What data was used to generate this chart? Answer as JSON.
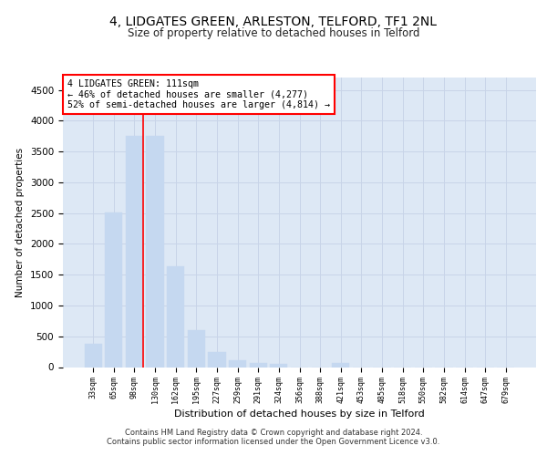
{
  "title_line1": "4, LIDGATES GREEN, ARLESTON, TELFORD, TF1 2NL",
  "title_line2": "Size of property relative to detached houses in Telford",
  "xlabel": "Distribution of detached houses by size in Telford",
  "ylabel": "Number of detached properties",
  "categories": [
    "33sqm",
    "65sqm",
    "98sqm",
    "130sqm",
    "162sqm",
    "195sqm",
    "227sqm",
    "259sqm",
    "291sqm",
    "324sqm",
    "356sqm",
    "388sqm",
    "421sqm",
    "453sqm",
    "485sqm",
    "518sqm",
    "550sqm",
    "582sqm",
    "614sqm",
    "647sqm",
    "679sqm"
  ],
  "values": [
    380,
    2510,
    3750,
    3750,
    1640,
    600,
    240,
    110,
    65,
    50,
    0,
    0,
    65,
    0,
    0,
    0,
    0,
    0,
    0,
    0,
    0
  ],
  "bar_color": "#c5d8f0",
  "bar_edge_color": "#c5d8f0",
  "grid_color": "#c8d4e8",
  "background_color": "#dde8f5",
  "annotation_text": "4 LIDGATES GREEN: 111sqm\n← 46% of detached houses are smaller (4,277)\n52% of semi-detached houses are larger (4,814) →",
  "ylim": [
    0,
    4700
  ],
  "yticks": [
    0,
    500,
    1000,
    1500,
    2000,
    2500,
    3000,
    3500,
    4000,
    4500
  ],
  "footer_line1": "Contains HM Land Registry data © Crown copyright and database right 2024.",
  "footer_line2": "Contains public sector information licensed under the Open Government Licence v3.0."
}
